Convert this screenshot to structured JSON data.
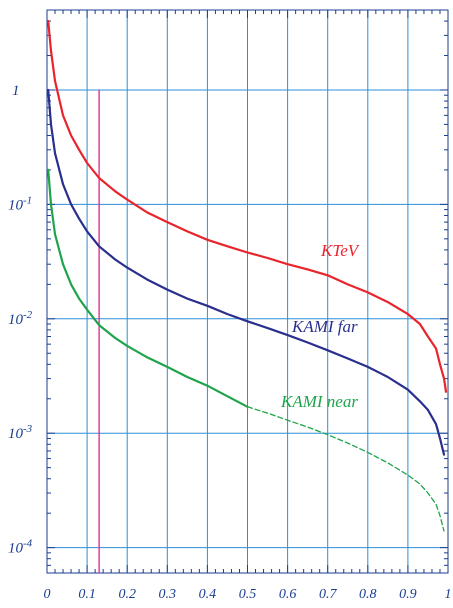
{
  "chart_data": {
    "type": "line",
    "title": "",
    "xlabel": "",
    "ylabel": "",
    "xlim": [
      0,
      1
    ],
    "ylim": [
      6e-05,
      5
    ],
    "yscale": "log",
    "grid": true,
    "x_tick_labels": [
      "0",
      "0.1",
      "0.2",
      "0.3",
      "0.4",
      "0.5",
      "0.6",
      "0.7",
      "0.8",
      "0.9",
      "1"
    ],
    "y_tick_labels": [
      {
        "value": 1,
        "base": "1",
        "exp": ""
      },
      {
        "value": 0.1,
        "base": "10",
        "exp": "-1"
      },
      {
        "value": 0.01,
        "base": "10",
        "exp": "-2"
      },
      {
        "value": 0.001,
        "base": "10",
        "exp": "-3"
      },
      {
        "value": 0.0001,
        "base": "10",
        "exp": "-4"
      }
    ],
    "vertical_marker": {
      "x": 0.13,
      "y_top": 1,
      "color": "#e0309a"
    },
    "series": [
      {
        "name": "KTeV",
        "color": "#e8242c",
        "x": [
          0.003,
          0.01,
          0.02,
          0.04,
          0.06,
          0.08,
          0.1,
          0.13,
          0.17,
          0.2,
          0.25,
          0.3,
          0.35,
          0.4,
          0.45,
          0.5,
          0.55,
          0.6,
          0.65,
          0.7,
          0.75,
          0.8,
          0.85,
          0.9,
          0.93,
          0.95,
          0.97,
          0.98,
          0.99,
          0.995
        ],
        "y": [
          4.0,
          2.2,
          1.2,
          0.6,
          0.4,
          0.3,
          0.23,
          0.17,
          0.13,
          0.11,
          0.085,
          0.07,
          0.058,
          0.049,
          0.043,
          0.038,
          0.034,
          0.03,
          0.027,
          0.024,
          0.02,
          0.017,
          0.014,
          0.011,
          0.009,
          0.007,
          0.0055,
          0.004,
          0.003,
          0.0023
        ]
      },
      {
        "name": "KAMI far",
        "color": "#2a2f8e",
        "x": [
          0.003,
          0.01,
          0.02,
          0.04,
          0.06,
          0.08,
          0.1,
          0.13,
          0.17,
          0.2,
          0.25,
          0.3,
          0.35,
          0.4,
          0.45,
          0.5,
          0.55,
          0.6,
          0.65,
          0.7,
          0.75,
          0.8,
          0.85,
          0.9,
          0.93,
          0.95,
          0.97,
          0.98,
          0.99
        ],
        "y": [
          1.0,
          0.5,
          0.28,
          0.15,
          0.1,
          0.075,
          0.058,
          0.043,
          0.033,
          0.028,
          0.022,
          0.018,
          0.015,
          0.013,
          0.011,
          0.0095,
          0.0083,
          0.0072,
          0.0062,
          0.0053,
          0.0045,
          0.0038,
          0.0031,
          0.0024,
          0.0019,
          0.0016,
          0.0012,
          0.0009,
          0.00065
        ]
      },
      {
        "name": "KAMI near",
        "color": "#1fa44c",
        "x": [
          0.003,
          0.01,
          0.02,
          0.04,
          0.06,
          0.08,
          0.1,
          0.13,
          0.17,
          0.2,
          0.25,
          0.3,
          0.35,
          0.4,
          0.45,
          0.5
        ],
        "y": [
          0.2,
          0.1,
          0.055,
          0.03,
          0.02,
          0.015,
          0.012,
          0.0088,
          0.0068,
          0.0058,
          0.0046,
          0.0038,
          0.0031,
          0.0026,
          0.0021,
          0.0017
        ]
      },
      {
        "name": "",
        "color": "#1fa44c",
        "dashed": true,
        "x": [
          0.5,
          0.55,
          0.6,
          0.65,
          0.7,
          0.75,
          0.8,
          0.85,
          0.9,
          0.93,
          0.95,
          0.97,
          0.98,
          0.99
        ],
        "y": [
          0.0017,
          0.0015,
          0.0013,
          0.00113,
          0.00097,
          0.00082,
          0.00068,
          0.00055,
          0.00043,
          0.00036,
          0.0003,
          0.00024,
          0.00019,
          0.00014
        ]
      }
    ]
  }
}
